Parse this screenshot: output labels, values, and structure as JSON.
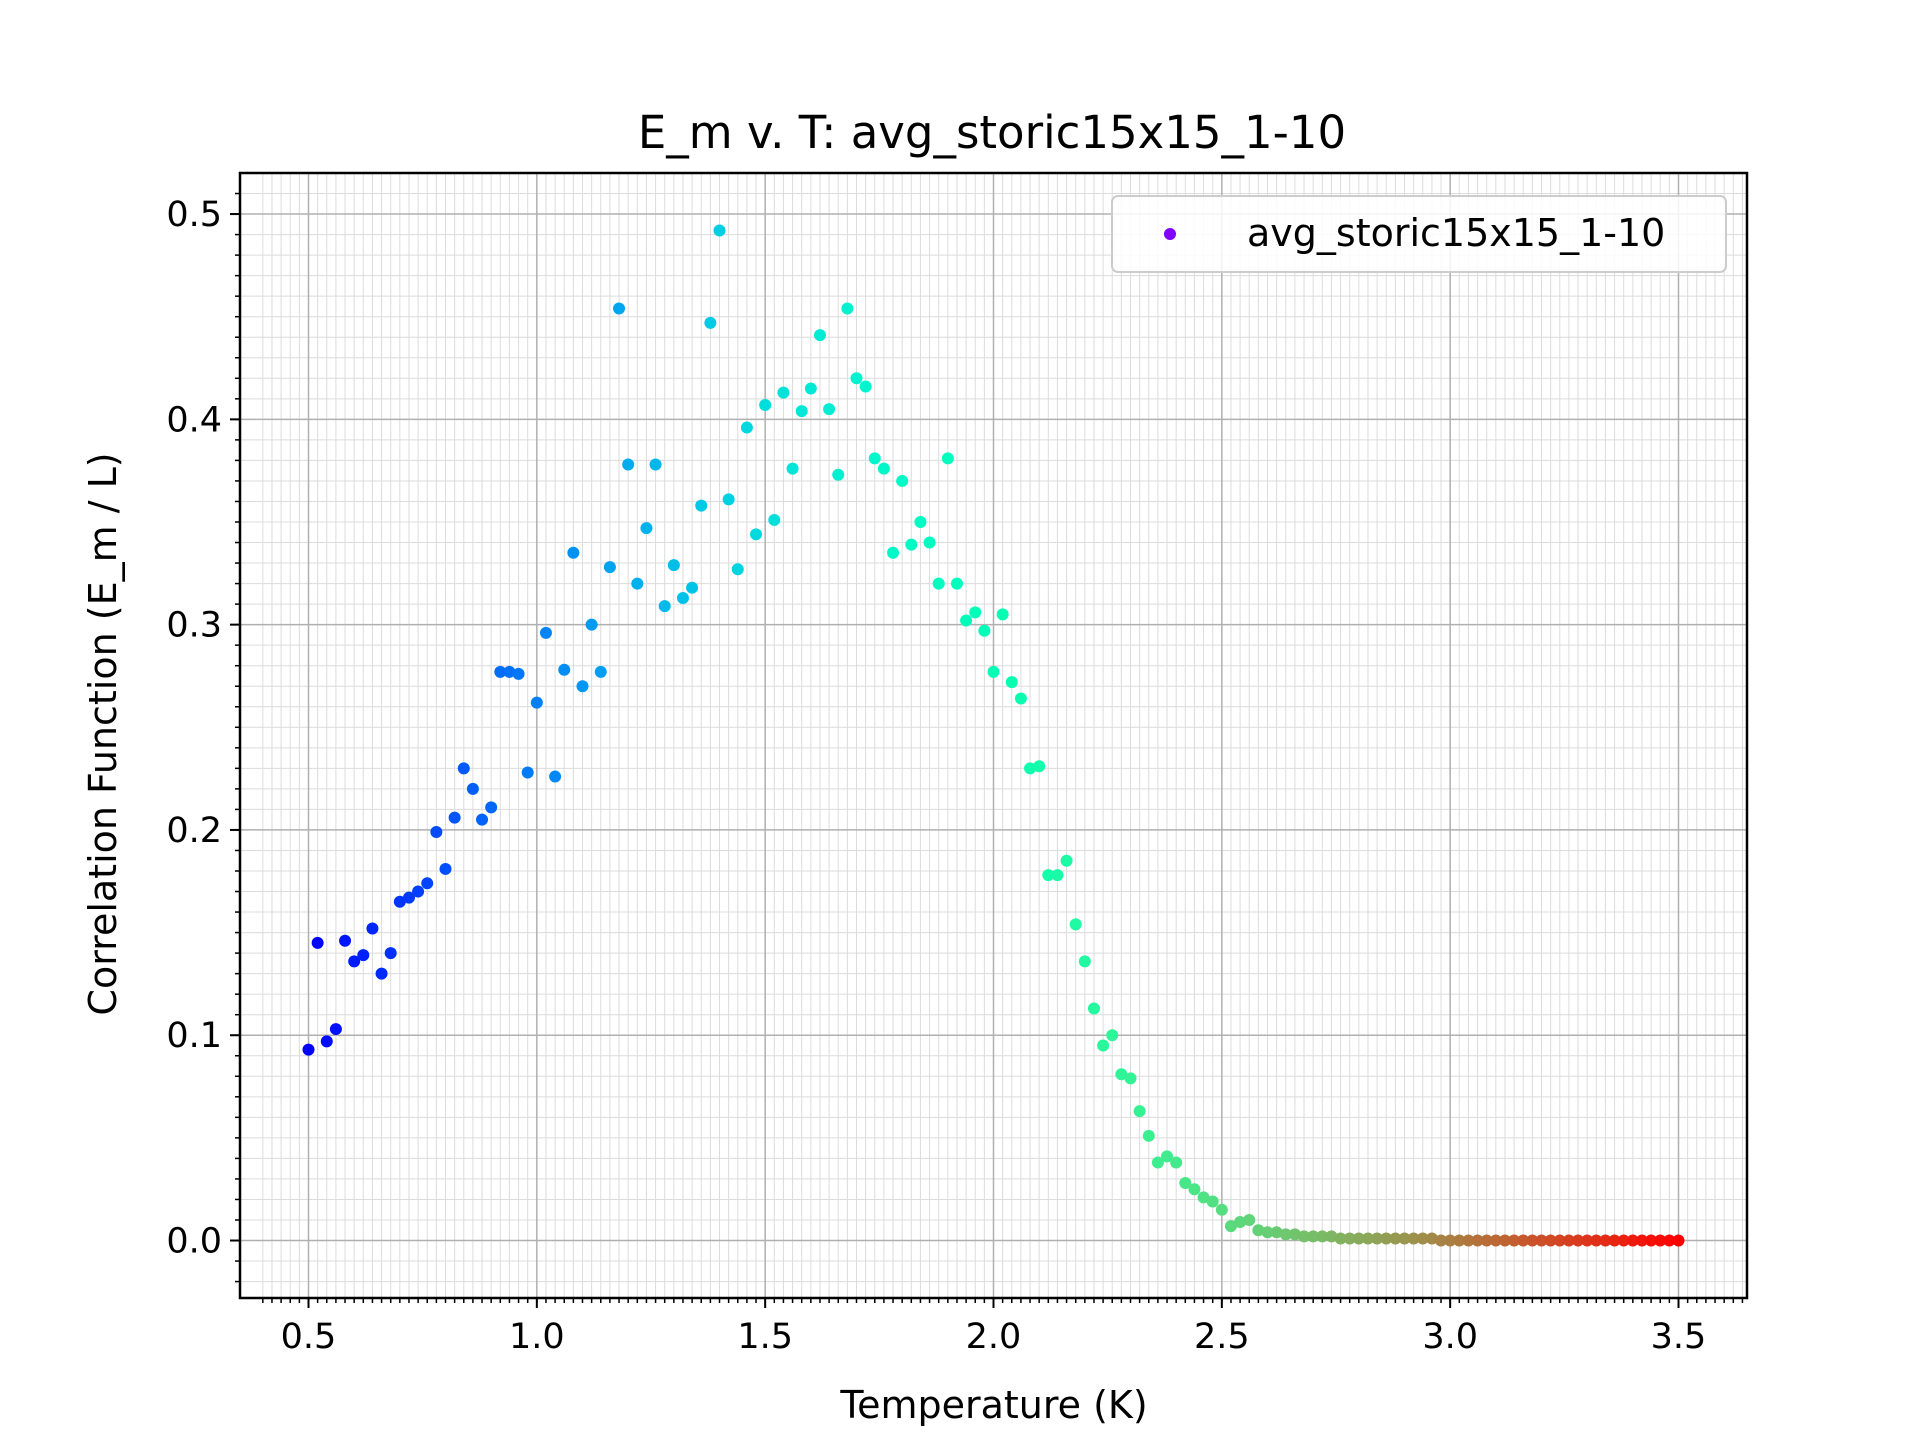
{
  "chart_data": {
    "type": "scatter",
    "title": "E_m v. T: avg_storic15x15_1-10",
    "xlabel": "Temperature (K)",
    "ylabel": "Correlation Function (E_m / L)",
    "xlim": [
      0.35,
      3.65
    ],
    "ylim": [
      -0.028,
      0.52
    ],
    "xticks": [
      0.5,
      1.0,
      1.5,
      2.0,
      2.5,
      3.0,
      3.5
    ],
    "xtick_labels": [
      "0.5",
      "1.0",
      "1.5",
      "2.0",
      "2.5",
      "3.0",
      "3.5"
    ],
    "yticks": [
      0.0,
      0.1,
      0.2,
      0.3,
      0.4,
      0.5
    ],
    "ytick_labels": [
      "0.0",
      "0.1",
      "0.2",
      "0.3",
      "0.4",
      "0.5"
    ],
    "grid": "major and minor",
    "legend_position": "top-right",
    "colormap": "rainbow",
    "series": [
      {
        "name": "avg_storic15x15_1-10",
        "legend_marker_color": "#8000ff",
        "x": [
          0.5,
          0.52,
          0.54,
          0.56,
          0.58,
          0.6,
          0.62,
          0.64,
          0.66,
          0.68,
          0.7,
          0.72,
          0.74,
          0.76,
          0.78,
          0.8,
          0.82,
          0.84,
          0.86,
          0.88,
          0.9,
          0.92,
          0.94,
          0.96,
          0.98,
          1.0,
          1.02,
          1.04,
          1.06,
          1.08,
          1.1,
          1.12,
          1.14,
          1.16,
          1.18,
          1.2,
          1.22,
          1.24,
          1.26,
          1.28,
          1.3,
          1.32,
          1.34,
          1.36,
          1.38,
          1.4,
          1.42,
          1.44,
          1.46,
          1.48,
          1.5,
          1.52,
          1.54,
          1.56,
          1.58,
          1.6,
          1.62,
          1.64,
          1.66,
          1.68,
          1.7,
          1.72,
          1.74,
          1.76,
          1.78,
          1.8,
          1.82,
          1.84,
          1.86,
          1.88,
          1.9,
          1.92,
          1.94,
          1.96,
          1.98,
          2.0,
          2.02,
          2.04,
          2.06,
          2.08,
          2.1,
          2.12,
          2.14,
          2.16,
          2.18,
          2.2,
          2.22,
          2.24,
          2.26,
          2.28,
          2.3,
          2.32,
          2.34,
          2.36,
          2.38,
          2.4,
          2.42,
          2.44,
          2.46,
          2.48,
          2.5,
          2.52,
          2.54,
          2.56,
          2.58,
          2.6,
          2.62,
          2.64,
          2.66,
          2.68,
          2.7,
          2.72,
          2.74,
          2.76,
          2.78,
          2.8,
          2.82,
          2.84,
          2.86,
          2.88,
          2.9,
          2.92,
          2.94,
          2.96,
          2.98,
          3.0,
          3.02,
          3.04,
          3.06,
          3.08,
          3.1,
          3.12,
          3.14,
          3.16,
          3.18,
          3.2,
          3.22,
          3.24,
          3.26,
          3.28,
          3.3,
          3.32,
          3.34,
          3.36,
          3.38,
          3.4,
          3.42,
          3.44,
          3.46,
          3.48,
          3.5
        ],
        "y": [
          0.093,
          0.145,
          0.097,
          0.103,
          0.146,
          0.136,
          0.139,
          0.152,
          0.13,
          0.14,
          0.165,
          0.167,
          0.17,
          0.174,
          0.199,
          0.181,
          0.206,
          0.23,
          0.22,
          0.205,
          0.211,
          0.277,
          0.277,
          0.276,
          0.228,
          0.262,
          0.296,
          0.226,
          0.278,
          0.335,
          0.27,
          0.3,
          0.277,
          0.328,
          0.454,
          0.378,
          0.32,
          0.347,
          0.378,
          0.309,
          0.329,
          0.313,
          0.318,
          0.358,
          0.447,
          0.492,
          0.361,
          0.327,
          0.396,
          0.344,
          0.407,
          0.351,
          0.413,
          0.376,
          0.404,
          0.415,
          0.441,
          0.405,
          0.373,
          0.454,
          0.42,
          0.416,
          0.381,
          0.376,
          0.335,
          0.37,
          0.339,
          0.35,
          0.34,
          0.32,
          0.381,
          0.32,
          0.302,
          0.306,
          0.297,
          0.277,
          0.305,
          0.272,
          0.264,
          0.23,
          0.231,
          0.178,
          0.178,
          0.185,
          0.154,
          0.136,
          0.113,
          0.095,
          0.1,
          0.081,
          0.079,
          0.063,
          0.051,
          0.038,
          0.041,
          0.038,
          0.028,
          0.025,
          0.021,
          0.019,
          0.015,
          0.007,
          0.009,
          0.01,
          0.005,
          0.004,
          0.004,
          0.003,
          0.003,
          0.002,
          0.002,
          0.002,
          0.002,
          0.001,
          0.001,
          0.001,
          0.001,
          0.001,
          0.001,
          0.001,
          0.001,
          0.001,
          0.001,
          0.001,
          0.0,
          0.0,
          0.0,
          0.0,
          0.0,
          0.0,
          0.0,
          0.0,
          0.0,
          0.0,
          0.0,
          0.0,
          0.0,
          0.0,
          0.0,
          0.0,
          0.0,
          0.0,
          0.0,
          0.0,
          0.0,
          0.0,
          0.0,
          0.0,
          0.0,
          0.0,
          0.0
        ]
      }
    ]
  }
}
